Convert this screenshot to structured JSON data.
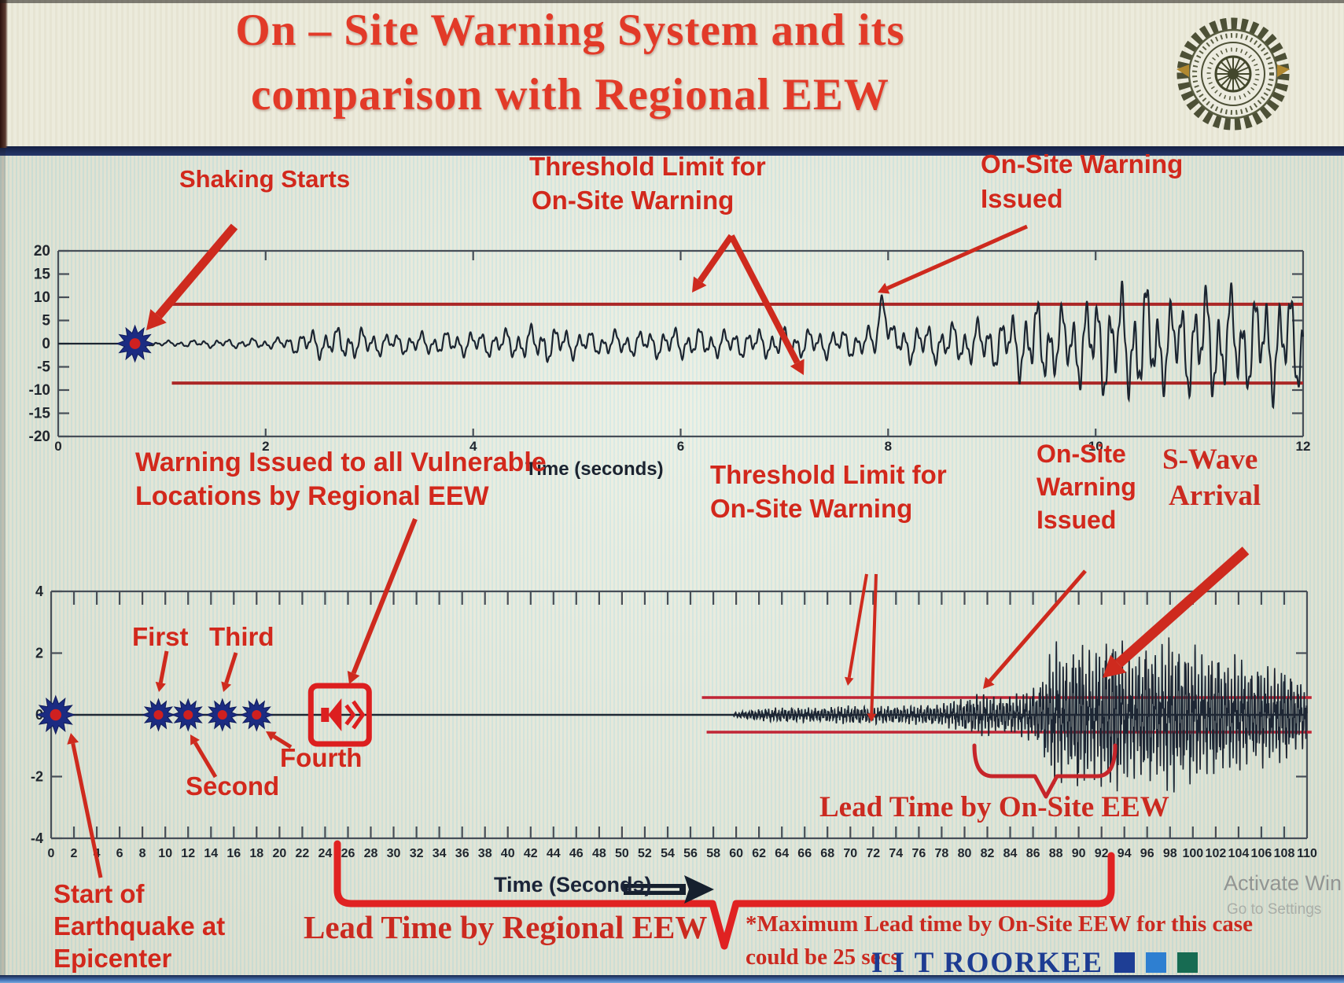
{
  "header": {
    "title_line1": "On – Site Warning System and its",
    "title_line2": "comparison with Regional EEW",
    "logo_alt": "IIT Roorkee emblem"
  },
  "annotations": {
    "shaking_starts": "Shaking Starts",
    "threshold_top_l1": "Threshold Limit for",
    "threshold_top_l2": "On-Site Warning",
    "issued_top_l1": "On-Site Warning",
    "issued_top_l2": "Issued",
    "regional_l1": "Warning Issued to all Vulnerable",
    "regional_l2": "Locations by Regional EEW",
    "threshold_bot_l1": "Threshold Limit for",
    "threshold_bot_l2": "On-Site Warning",
    "issued_bot_l1": "On-Site",
    "issued_bot_l2": "Warning",
    "issued_bot_l3": "Issued",
    "swave_l1": "S-Wave",
    "swave_l2": "Arrival",
    "first": "First",
    "second": "Second",
    "third": "Third",
    "fourth": "Fourth",
    "start_l1": "Start of",
    "start_l2": "Earthquake at",
    "start_l3": "Epicenter",
    "lead_onsite": "Lead Time by On-Site EEW",
    "lead_regional": "Lead Time by Regional EEW",
    "note_l1": "*Maximum Lead time by On-Site EEW for this case",
    "note_l2": "could be 25 secs"
  },
  "footer": {
    "brand": "I I T ROORKEE",
    "brand_colors": [
      "#1e3e95",
      "#2e7fd1",
      "#176b52"
    ],
    "watermark_l1": "Activate Win",
    "watermark_l2": "Go to Settings"
  },
  "chart_data": [
    {
      "id": "onsite-warning-seismogram",
      "type": "line",
      "title": "",
      "xlabel": "Time (seconds)",
      "ylabel": "",
      "xlim": [
        0,
        12
      ],
      "ylim": [
        -20,
        20
      ],
      "xticks": [
        0,
        2,
        4,
        6,
        8,
        10,
        12
      ],
      "yticks": [
        20,
        15,
        10,
        5,
        0,
        -5,
        -10,
        -15,
        -20
      ],
      "grid": false,
      "legend": "none",
      "threshold_upper": 8.5,
      "threshold_lower": -8.5,
      "threshold_x_start": 1.05,
      "threshold_x_end": 12,
      "event_marker_x": 0.74,
      "event_marker_y": 0,
      "warning_crossing_x": 7.95,
      "amplitude_envelope": [
        [
          0.74,
          0.45
        ],
        [
          1.3,
          0.9
        ],
        [
          2.1,
          1.4
        ],
        [
          2.45,
          3.6
        ],
        [
          2.8,
          4.3
        ],
        [
          3.2,
          2.6
        ],
        [
          3.7,
          3.0
        ],
        [
          4.2,
          3.3
        ],
        [
          4.7,
          4.9
        ],
        [
          5.1,
          3.1
        ],
        [
          5.6,
          3.3
        ],
        [
          6.0,
          4.0
        ],
        [
          6.5,
          3.4
        ],
        [
          7.0,
          3.9
        ],
        [
          7.5,
          3.6
        ],
        [
          7.85,
          4.0
        ],
        [
          8.1,
          4.6
        ],
        [
          8.6,
          5.2
        ],
        [
          9.1,
          6.5
        ],
        [
          9.4,
          11.0
        ],
        [
          9.7,
          9.0
        ],
        [
          10.0,
          13.0
        ],
        [
          10.45,
          15.5
        ],
        [
          10.75,
          11.0
        ],
        [
          11.1,
          15.0
        ],
        [
          11.45,
          12.5
        ],
        [
          11.75,
          14.0
        ],
        [
          12.0,
          12.5
        ]
      ]
    },
    {
      "id": "regional-vs-onsite-timeline",
      "type": "line",
      "title": "",
      "xlabel": "Time (Seconds)",
      "ylabel": "",
      "xlim": [
        0,
        110
      ],
      "ylim": [
        -4,
        4
      ],
      "xticks": [
        0,
        2,
        4,
        6,
        8,
        10,
        12,
        14,
        16,
        18,
        20,
        22,
        24,
        26,
        28,
        30,
        32,
        34,
        36,
        38,
        40,
        42,
        44,
        46,
        48,
        50,
        52,
        54,
        56,
        58,
        60,
        62,
        64,
        66,
        68,
        70,
        72,
        74,
        76,
        78,
        80,
        82,
        84,
        86,
        88,
        90,
        92,
        94,
        96,
        98,
        100,
        102,
        104,
        106,
        108,
        110
      ],
      "yticks": [
        4,
        2,
        0,
        -2,
        -4
      ],
      "grid": false,
      "legend": "none",
      "threshold_upper": 0.56,
      "threshold_lower": -0.56,
      "threshold_x_start": 57,
      "threshold_x_end": 110.4,
      "station_trigger_markers_x": [
        0.4,
        9.4,
        12,
        15,
        18
      ],
      "regional_warning_icon_x": 25.3,
      "p_wave_start_x": 59.8,
      "onsite_warning_crossing_x": 81.5,
      "s_wave_arrival_x": 94,
      "lead_time_regional_span_x": [
        25,
        93
      ],
      "lead_time_onsite_span_x": [
        81,
        93.5
      ],
      "amplitude_envelope": [
        [
          59.8,
          0.08
        ],
        [
          62,
          0.2
        ],
        [
          64,
          0.26
        ],
        [
          67,
          0.24
        ],
        [
          70,
          0.32
        ],
        [
          73,
          0.3
        ],
        [
          76,
          0.33
        ],
        [
          78,
          0.38
        ],
        [
          80,
          0.6
        ],
        [
          81.5,
          0.75
        ],
        [
          83,
          0.62
        ],
        [
          85,
          0.75
        ],
        [
          86.5,
          1.1
        ],
        [
          88,
          2.6
        ],
        [
          89,
          1.9
        ],
        [
          90,
          2.9
        ],
        [
          91,
          2.1
        ],
        [
          92,
          2.5
        ],
        [
          93,
          3.0
        ],
        [
          94,
          2.4
        ],
        [
          95,
          2.1
        ],
        [
          96,
          2.7
        ],
        [
          97,
          2.1
        ],
        [
          98,
          2.9
        ],
        [
          99,
          2.3
        ],
        [
          100,
          2.5
        ],
        [
          101,
          1.9
        ],
        [
          102,
          2.4
        ],
        [
          103,
          1.8
        ],
        [
          104,
          2.1
        ],
        [
          105,
          1.6
        ],
        [
          106,
          1.9
        ],
        [
          107,
          1.5
        ],
        [
          108,
          1.8
        ],
        [
          109,
          1.3
        ],
        [
          110,
          1.1
        ]
      ]
    }
  ]
}
